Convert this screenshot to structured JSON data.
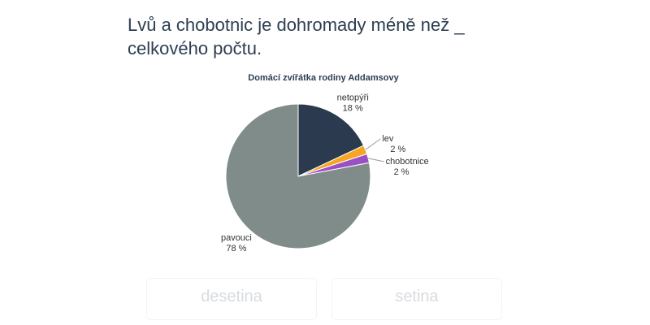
{
  "question": "Lvů a chobotnic je dohromady méně než _ celkového počtu.",
  "chart_data": {
    "type": "pie",
    "title": "Domácí zvířátka rodiny Addamsovy",
    "categories": [
      "netopýři",
      "lev",
      "chobotnice",
      "pavouci"
    ],
    "values": [
      18,
      2,
      2,
      78
    ],
    "value_labels": [
      "18 %",
      "2 %",
      "2 %",
      "78 %"
    ],
    "colors": [
      "#2b3a4e",
      "#f5a623",
      "#9b4fc4",
      "#7f8c8a"
    ]
  },
  "options": [
    "desetina",
    "setina"
  ]
}
